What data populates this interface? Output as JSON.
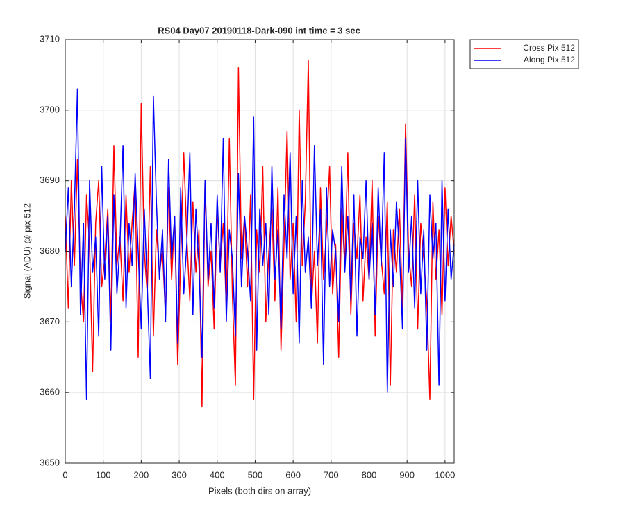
{
  "chart_data": {
    "type": "line",
    "title": "RS04 Day07 20190118-Dark-090 int time = 3 sec",
    "xlabel": "Pixels (both dirs on array)",
    "ylabel": "Signal (ADU) @ pix 512",
    "xlim": [
      0,
      1024
    ],
    "ylim": [
      3650,
      3710
    ],
    "xticks": [
      0,
      100,
      200,
      300,
      400,
      500,
      600,
      700,
      800,
      900,
      1000
    ],
    "yticks": [
      3650,
      3660,
      3670,
      3680,
      3690,
      3700,
      3710
    ],
    "grid": true,
    "legend": "outside-top-right",
    "x": [
      0,
      8,
      16,
      24,
      32,
      40,
      48,
      56,
      64,
      72,
      80,
      88,
      96,
      104,
      112,
      120,
      128,
      136,
      144,
      152,
      160,
      168,
      176,
      184,
      192,
      200,
      208,
      216,
      224,
      232,
      240,
      248,
      256,
      264,
      272,
      280,
      288,
      296,
      304,
      312,
      320,
      328,
      336,
      344,
      352,
      360,
      368,
      376,
      384,
      392,
      400,
      408,
      416,
      424,
      432,
      440,
      448,
      456,
      464,
      472,
      480,
      488,
      496,
      504,
      512,
      520,
      528,
      536,
      544,
      552,
      560,
      568,
      576,
      584,
      592,
      600,
      608,
      616,
      624,
      632,
      640,
      648,
      656,
      664,
      672,
      680,
      688,
      696,
      704,
      712,
      720,
      728,
      736,
      744,
      752,
      760,
      768,
      776,
      784,
      792,
      800,
      808,
      816,
      824,
      832,
      840,
      848,
      856,
      864,
      872,
      880,
      888,
      896,
      904,
      912,
      920,
      928,
      936,
      944,
      952,
      960,
      968,
      976,
      984,
      992,
      1000,
      1008,
      1016,
      1024
    ],
    "series": [
      {
        "name": "Cross Pix 512",
        "color": "#ff0000",
        "values": [
          3685,
          3672,
          3690,
          3678,
          3693,
          3676,
          3670,
          3688,
          3681,
          3663,
          3684,
          3690,
          3675,
          3679,
          3686,
          3670,
          3695,
          3678,
          3682,
          3673,
          3688,
          3677,
          3684,
          3690,
          3665,
          3701,
          3680,
          3674,
          3692,
          3668,
          3683,
          3677,
          3680,
          3671,
          3689,
          3676,
          3685,
          3664,
          3679,
          3694,
          3682,
          3673,
          3687,
          3677,
          3683,
          3658,
          3690,
          3675,
          3680,
          3669,
          3686,
          3678,
          3684,
          3672,
          3696,
          3674,
          3661,
          3706,
          3679,
          3685,
          3675,
          3688,
          3659,
          3683,
          3677,
          3692,
          3670,
          3680,
          3686,
          3673,
          3689,
          3666,
          3681,
          3697,
          3676,
          3684,
          3670,
          3700,
          3678,
          3687,
          3707,
          3672,
          3680,
          3667,
          3689,
          3676,
          3683,
          3692,
          3674,
          3681,
          3665,
          3686,
          3678,
          3694,
          3671,
          3684,
          3679,
          3688,
          3673,
          3682,
          3676,
          3690,
          3668,
          3685,
          3679,
          3674,
          3687,
          3661,
          3683,
          3677,
          3686,
          3672,
          3698,
          3680,
          3675,
          3688,
          3669,
          3684,
          3679,
          3673,
          3659,
          3687,
          3676,
          3683,
          3671,
          3689,
          3678,
          3685,
          3680
        ]
      },
      {
        "name": "Along Pix 512",
        "color": "#0000ff",
        "values": [
          3680,
          3689,
          3675,
          3686,
          3703,
          3671,
          3684,
          3659,
          3690,
          3677,
          3682,
          3668,
          3692,
          3676,
          3685,
          3666,
          3688,
          3674,
          3681,
          3695,
          3672,
          3684,
          3678,
          3691,
          3680,
          3669,
          3686,
          3675,
          3662,
          3702,
          3687,
          3676,
          3683,
          3670,
          3693,
          3679,
          3685,
          3667,
          3689,
          3674,
          3681,
          3694,
          3671,
          3686,
          3678,
          3665,
          3690,
          3676,
          3684,
          3672,
          3688,
          3677,
          3696,
          3670,
          3683,
          3679,
          3668,
          3691,
          3675,
          3685,
          3680,
          3673,
          3699,
          3666,
          3686,
          3678,
          3684,
          3671,
          3692,
          3676,
          3683,
          3669,
          3688,
          3679,
          3694,
          3674,
          3685,
          3667,
          3690,
          3677,
          3682,
          3672,
          3695,
          3678,
          3686,
          3664,
          3689,
          3675,
          3683,
          3680,
          3670,
          3692,
          3677,
          3685,
          3673,
          3688,
          3668,
          3682,
          3679,
          3690,
          3676,
          3684,
          3671,
          3689,
          3678,
          3694,
          3660,
          3683,
          3675,
          3687,
          3680,
          3669,
          3696,
          3677,
          3685,
          3672,
          3690,
          3674,
          3683,
          3666,
          3688,
          3679,
          3684,
          3661,
          3690,
          3673,
          3686,
          3676,
          3681
        ]
      }
    ]
  }
}
